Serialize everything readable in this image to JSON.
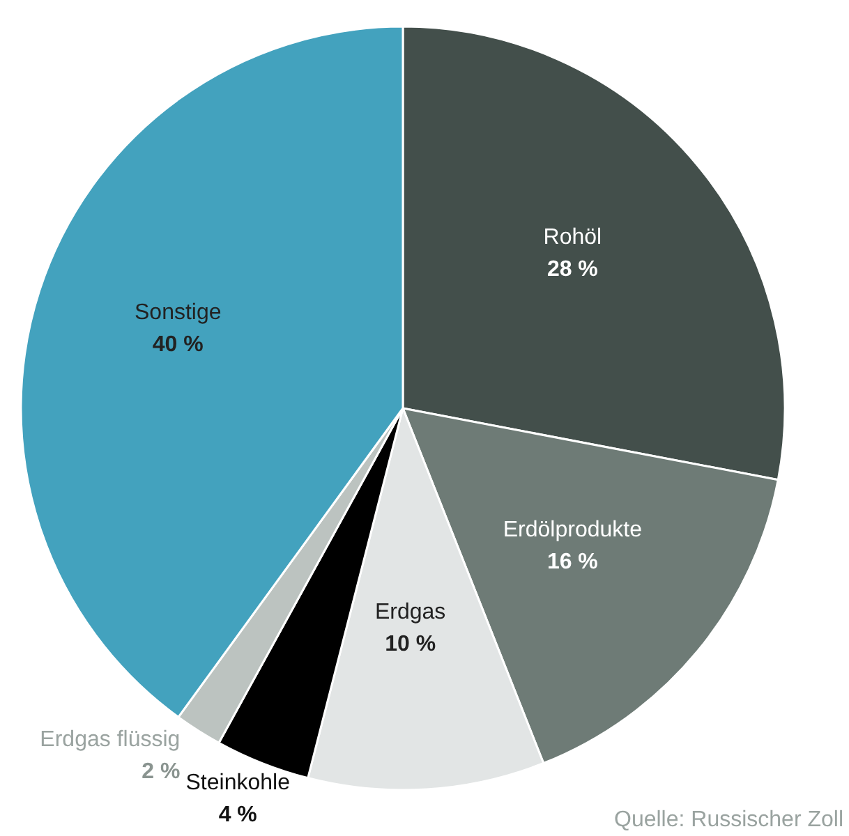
{
  "chart_data": {
    "type": "pie",
    "categories": [
      "Rohöl",
      "Erdölprodukte",
      "Erdgas",
      "Steinkohle",
      "Erdgas flüssig",
      "Sonstige"
    ],
    "values": [
      28,
      16,
      10,
      4,
      2,
      40
    ],
    "value_labels": [
      "28 %",
      "16 %",
      "10 %",
      "4 %",
      "2 %",
      "40 %"
    ],
    "colors": [
      "#434f4b",
      "#6e7b76",
      "#e2e5e5",
      "#000000",
      "#bcc3c0",
      "#43a2be"
    ],
    "annotations": [
      "Quelle: Russischer Zoll"
    ]
  }
}
